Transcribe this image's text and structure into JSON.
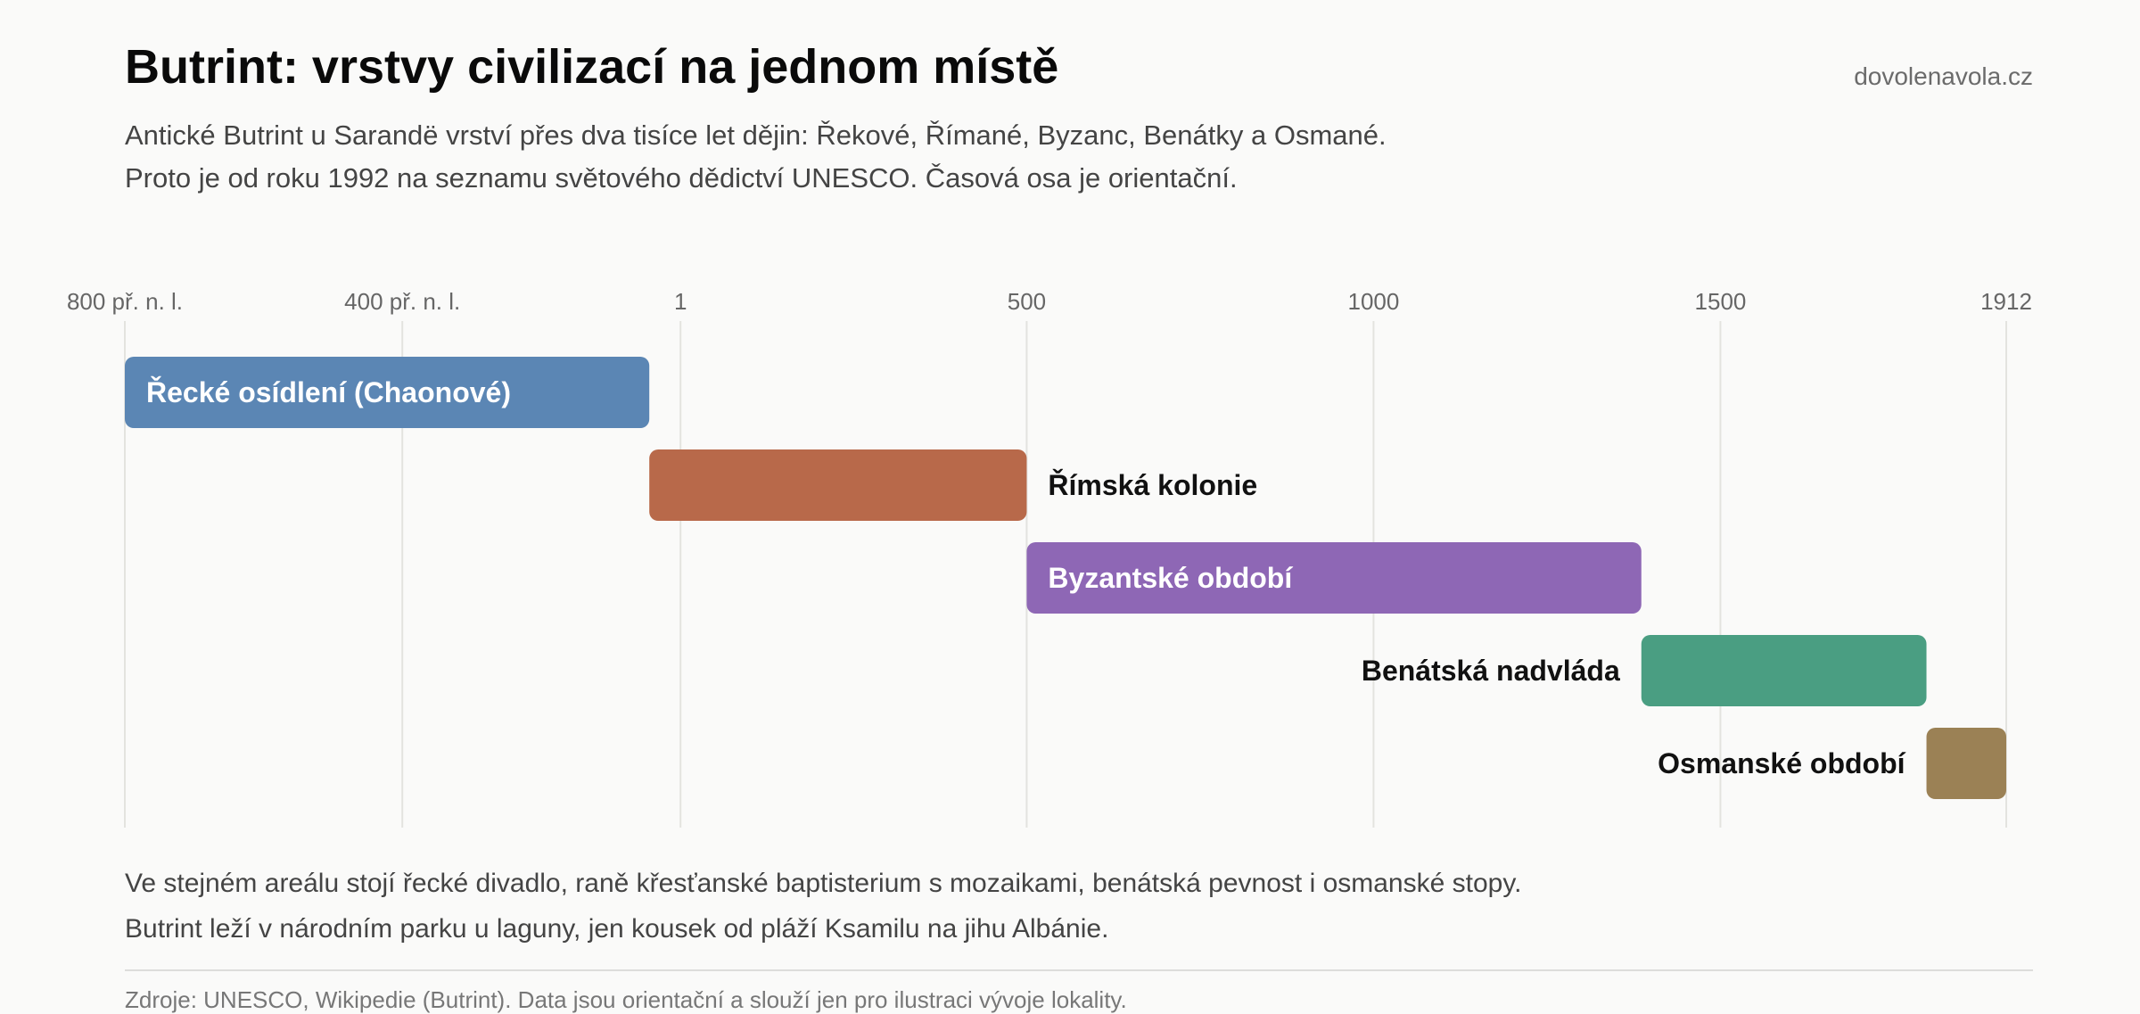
{
  "header": {
    "title": "Butrint: vrstvy civilizací na jednom místě",
    "source": "dovolenavola.cz",
    "subtitle_lines": [
      "Antické Butrint u Sarandë vrství přes dva tisíce let dějin: Řekové, Římané, Byzanc, Benátky a Osmané.",
      "Proto je od roku 1992 na seznamu světového dědictví UNESCO. Časová osa je orientační."
    ]
  },
  "chart_data": {
    "type": "bar",
    "orientation": "horizontal-timeline",
    "x_axis": {
      "min": -800,
      "max": 1912,
      "ticks": [
        {
          "value": -800,
          "label": "800 př. n. l."
        },
        {
          "value": -400,
          "label": "400 př. n. l."
        },
        {
          "value": 1,
          "label": "1"
        },
        {
          "value": 500,
          "label": "500"
        },
        {
          "value": 1000,
          "label": "1000"
        },
        {
          "value": 1500,
          "label": "1500"
        },
        {
          "value": 1912,
          "label": "1912"
        }
      ],
      "grid": true
    },
    "periods": [
      {
        "label": "Řecké osídlení (Chaonové)",
        "start": -800,
        "end": -44,
        "color": "#5b86b4",
        "label_position": "inside"
      },
      {
        "label": "Římská kolonie",
        "start": -44,
        "end": 500,
        "color": "#b8694a",
        "label_position": "right"
      },
      {
        "label": "Byzantské období",
        "start": 500,
        "end": 1386,
        "color": "#8e67b5",
        "label_position": "inside"
      },
      {
        "label": "Benátská nadvláda",
        "start": 1386,
        "end": 1797,
        "color": "#4a9e82",
        "label_position": "left"
      },
      {
        "label": "Osmanské období",
        "start": 1797,
        "end": 1912,
        "color": "#9b8155",
        "label_position": "left"
      }
    ]
  },
  "footer": {
    "lines": [
      "Ve stejném areálu stojí řecké divadlo, raně křesťanské baptisterium s mozaikami, benátská pevnost i osmanské stopy.",
      "Butrint leží v národním parku u laguny, jen kousek od pláží Ksamilu na jihu Albánie."
    ],
    "note": "Zdroje: UNESCO, Wikipedie (Butrint). Data jsou orientační a slouží jen pro ilustraci vývoje lokality."
  }
}
